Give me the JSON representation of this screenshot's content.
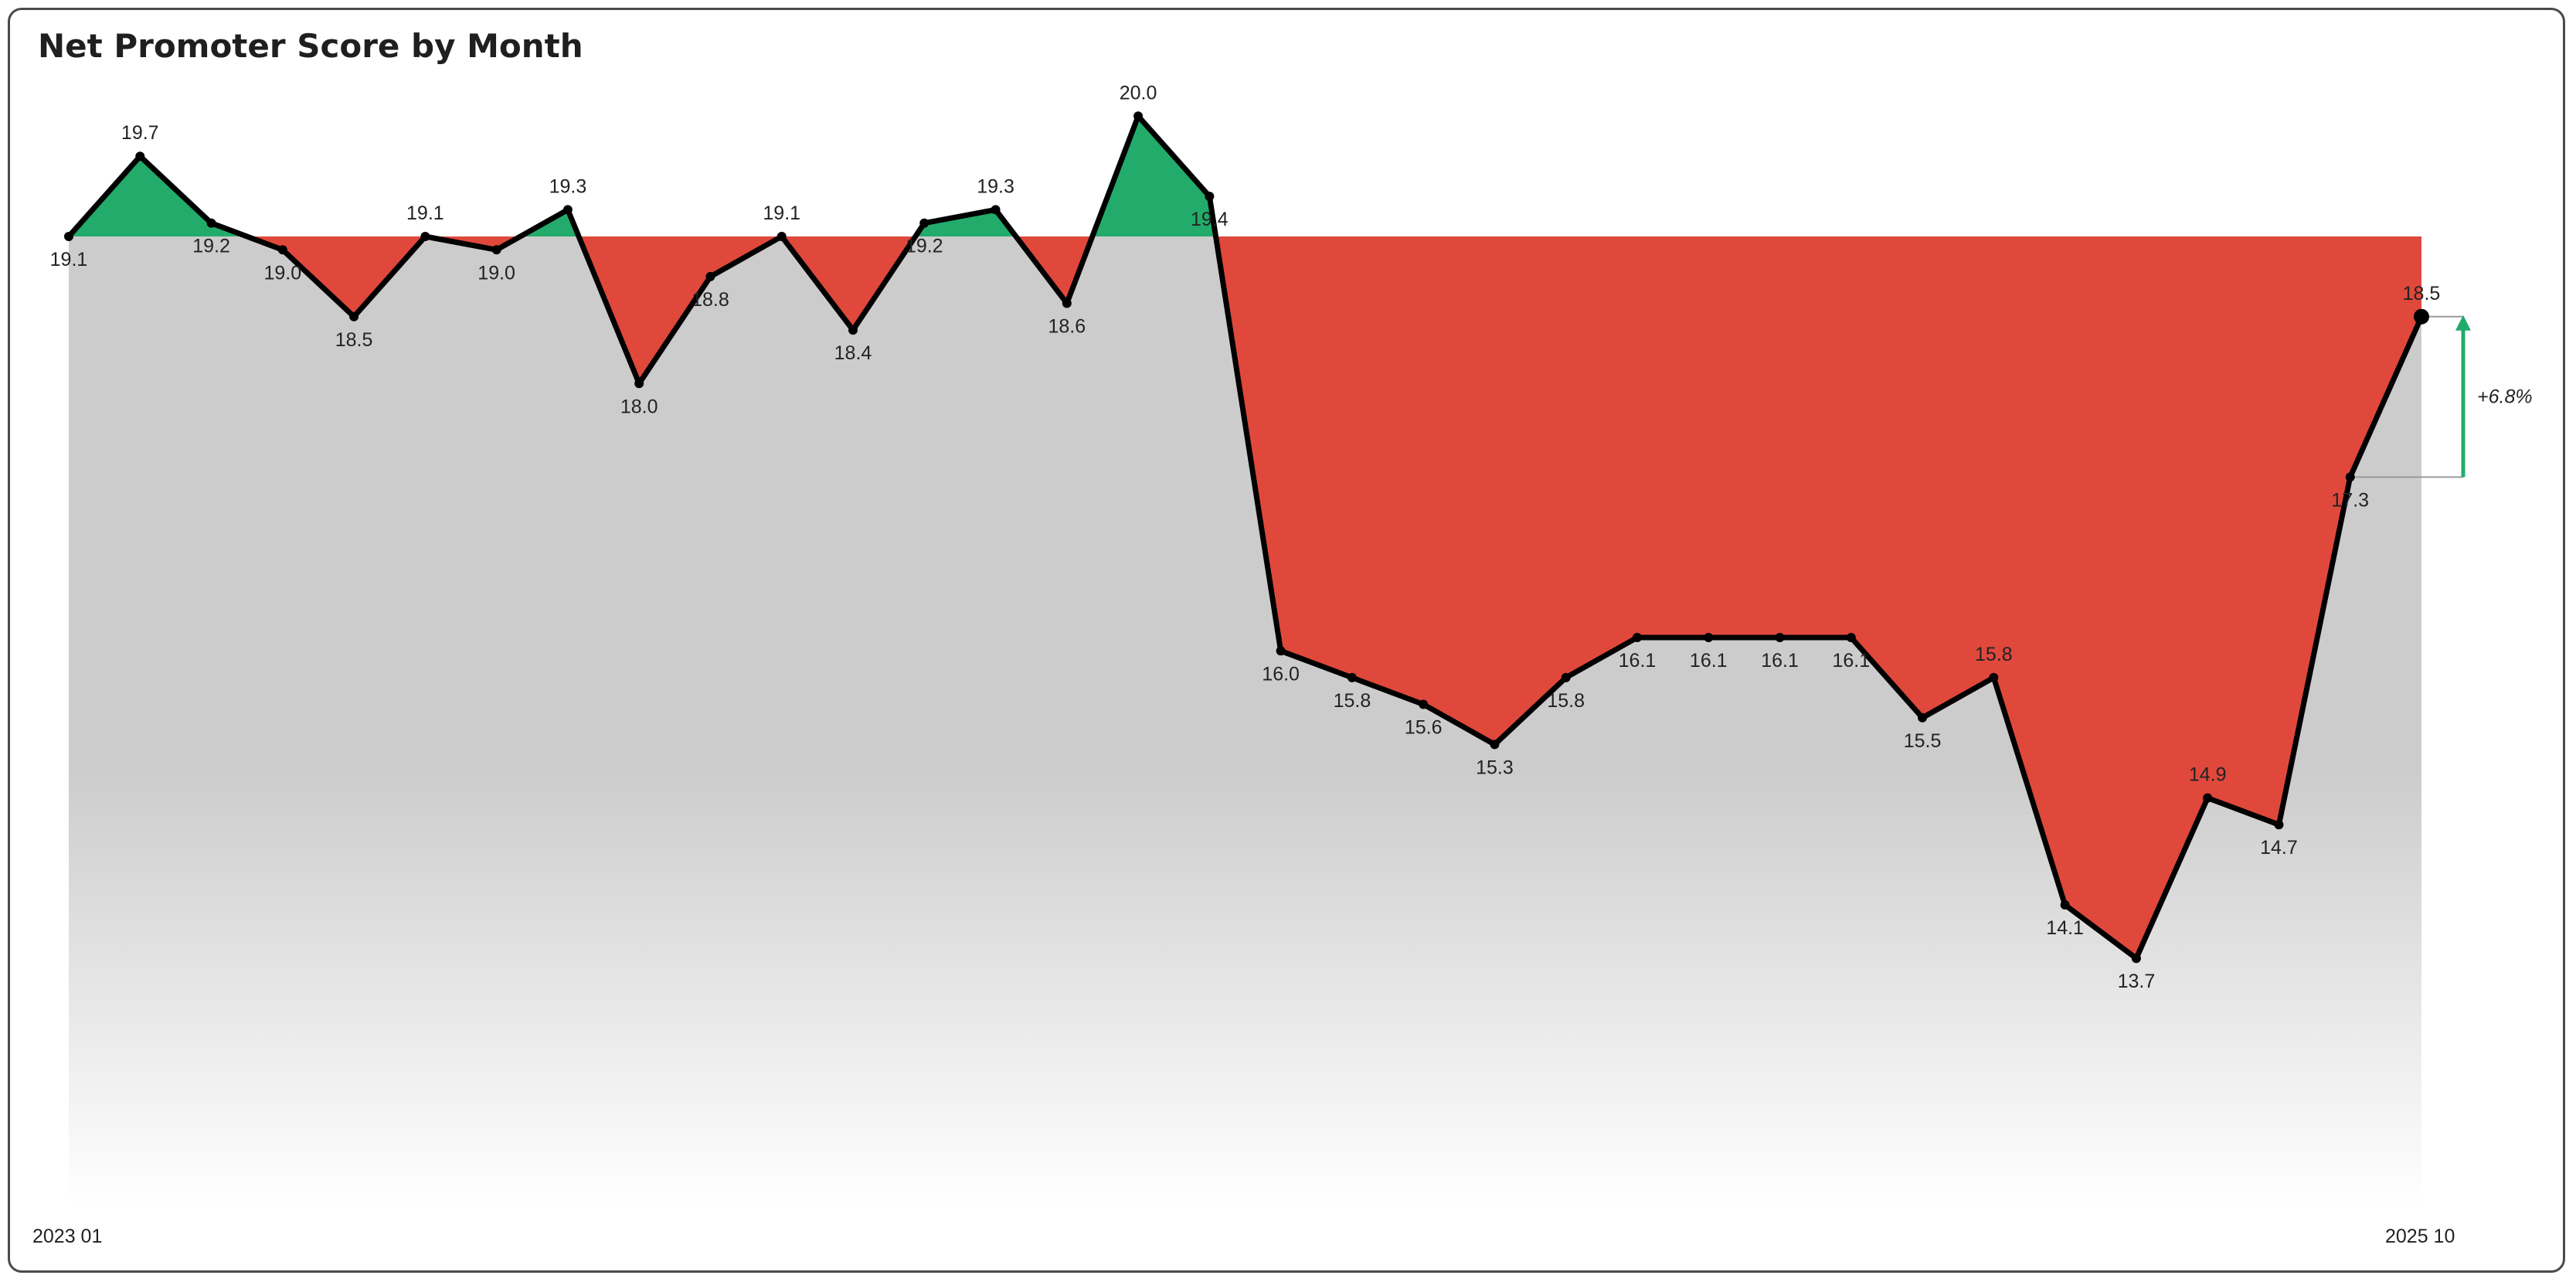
{
  "chart_data": {
    "type": "area",
    "title": "Net Promoter Score by Month",
    "x_tick_labels": [
      "2023 01",
      "2025 10"
    ],
    "values": [
      19.1,
      19.7,
      19.2,
      19.0,
      18.5,
      19.1,
      19.0,
      19.3,
      18.0,
      18.8,
      19.1,
      18.4,
      19.2,
      19.3,
      18.6,
      20.0,
      19.4,
      16.0,
      15.8,
      15.6,
      15.3,
      15.8,
      16.1,
      16.1,
      16.1,
      16.1,
      15.5,
      15.8,
      14.1,
      13.7,
      14.9,
      14.7,
      17.3,
      18.5
    ],
    "baseline": 19.1,
    "change_label": "+6.8%",
    "colors": {
      "above_baseline": "#22ab6b",
      "below_baseline": "#e0483c",
      "line": "#000000",
      "background_top": "#cccccc",
      "background_bottom": "#ffffff",
      "arrow": "#22ab6b"
    }
  }
}
